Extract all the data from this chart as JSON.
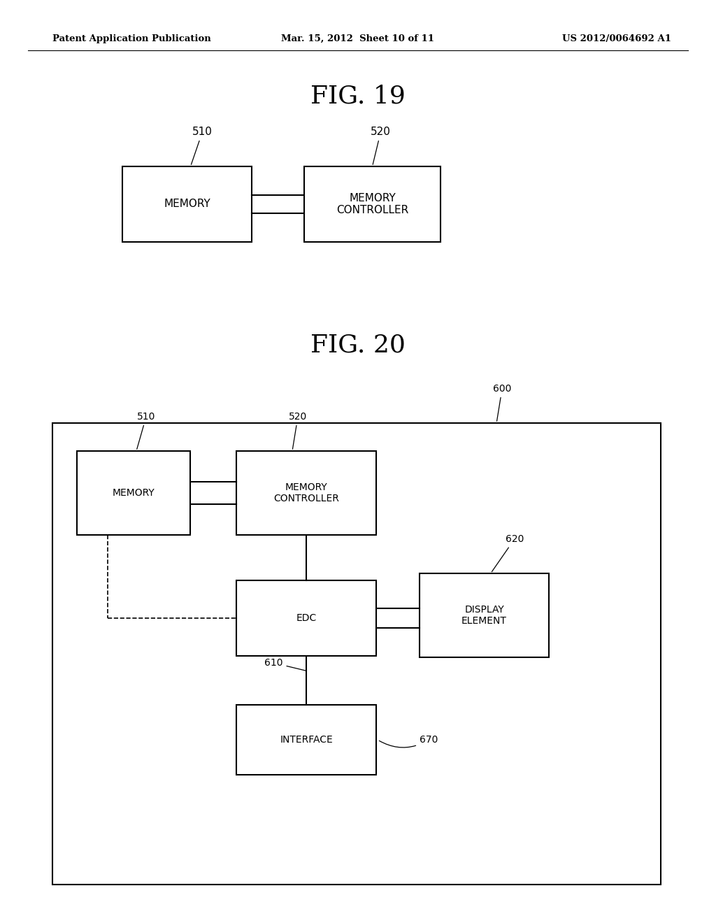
{
  "background_color": "#ffffff",
  "header_left": "Patent Application Publication",
  "header_mid": "Mar. 15, 2012  Sheet 10 of 11",
  "header_right": "US 2012/0064692 A1",
  "fig19_title": "FIG. 19",
  "fig20_title": "FIG. 20",
  "fig19": {
    "memory_label": "MEMORY",
    "mc_label": "MEMORY\nCONTROLLER",
    "label_510": "510",
    "label_520": "520"
  },
  "fig20": {
    "memory_label": "MEMORY",
    "mc_label": "MEMORY\nCONTROLLER",
    "edc_label": "EDC",
    "display_label": "DISPLAY\nELEMENT",
    "interface_label": "INTERFACE",
    "label_510": "510",
    "label_520": "520",
    "label_600": "600",
    "label_610": "610",
    "label_620": "620",
    "label_670": "670"
  }
}
